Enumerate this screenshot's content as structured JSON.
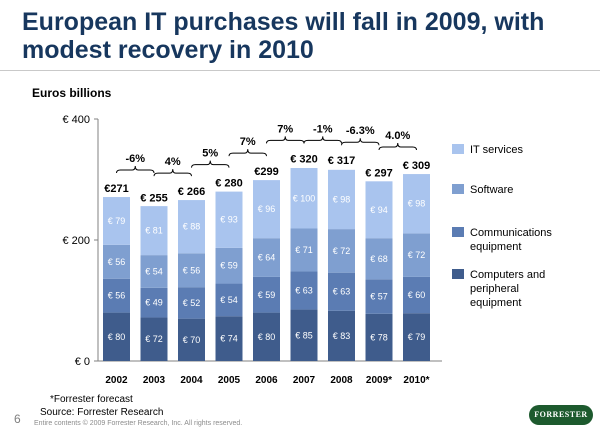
{
  "slide": {
    "title": "European IT purchases will fall in 2009, with modest recovery in 2010",
    "units": "Euros billions",
    "footnote": "*Forrester forecast",
    "source": "Source: Forrester Research",
    "page_number": "6",
    "copyright": "Entire contents © 2009 Forrester Research, Inc. All rights reserved.",
    "logo_text": "FORRESTER"
  },
  "chart_data": {
    "type": "bar",
    "stacked": true,
    "categories": [
      "2002",
      "2003",
      "2004",
      "2005",
      "2006",
      "2007",
      "2008",
      "2009*",
      "2010*"
    ],
    "series": [
      {
        "name": "Computers and peripheral equipment",
        "values": [
          80,
          72,
          70,
          74,
          80,
          85,
          83,
          78,
          79
        ],
        "labels": [
          "€ 80",
          "€ 72",
          "€ 70",
          "€ 74",
          "€ 80",
          "€ 85",
          "€ 83",
          "€ 78",
          "€ 79"
        ],
        "color": "#3f5c8c"
      },
      {
        "name": "Communications equipment",
        "values": [
          56,
          49,
          52,
          54,
          59,
          63,
          63,
          57,
          60
        ],
        "labels": [
          "€ 56",
          "€ 49",
          "€ 52",
          "€ 54",
          "€ 59",
          "€ 63",
          "€ 63",
          "€ 57",
          "€ 60"
        ],
        "color": "#5b7cb3"
      },
      {
        "name": "Software",
        "values": [
          56,
          54,
          56,
          59,
          64,
          71,
          72,
          68,
          72
        ],
        "labels": [
          "€ 56",
          "€ 54",
          "€ 56",
          "€ 59",
          "€ 64",
          "€ 71",
          "€ 72",
          "€ 68",
          "€ 72"
        ],
        "color": "#7f9fd0"
      },
      {
        "name": "IT services",
        "values": [
          79,
          81,
          88,
          93,
          96,
          100,
          98,
          94,
          98
        ],
        "labels": [
          "€ 79",
          "€ 81",
          "€ 88",
          "€ 93",
          "€ 96",
          "€ 100",
          "€ 98",
          "€ 94",
          "€ 98"
        ],
        "color": "#a9c4ee"
      }
    ],
    "totals": [
      271,
      255,
      266,
      280,
      299,
      320,
      317,
      297,
      309
    ],
    "total_labels": [
      "€271",
      "€ 255",
      "€ 266",
      "€ 280",
      "€299",
      "€ 320",
      "€ 317",
      "€ 297",
      "€ 309"
    ],
    "growth_labels": [
      "-6%",
      "4%",
      "5%",
      "7%",
      "7%",
      "-1%",
      "-6.3%",
      "4.0%"
    ],
    "y_ticks": [
      0,
      200,
      400
    ],
    "y_tick_labels": [
      "€ 0",
      "€ 200",
      "€ 400"
    ],
    "ylim": [
      0,
      400
    ],
    "legend_position": "right",
    "grid": false
  }
}
